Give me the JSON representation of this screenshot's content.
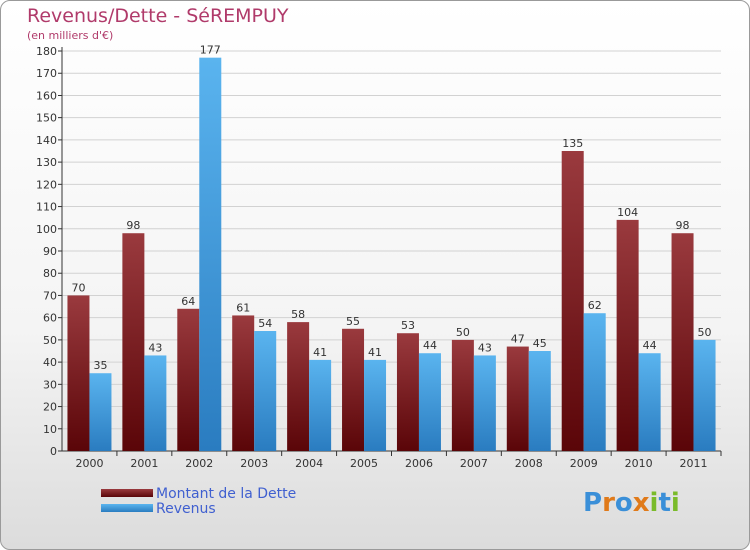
{
  "title": "Revenus/Dette - SéREMPUY",
  "subtitle": "(en milliers d'€)",
  "legend": {
    "debt_label": "Montant de la Dette",
    "revenue_label": "Revenus"
  },
  "brand": "Proxiti",
  "colors": {
    "title": "#b03a6a",
    "debt": "#7a1a1e",
    "revenue": "#3a98dc",
    "legend_text": "#4060d0"
  },
  "chart_data": {
    "type": "bar",
    "title": "Revenus/Dette - SéREMPUY",
    "ylabel": "(en milliers d'€)",
    "xlabel": "",
    "categories": [
      "2000",
      "2001",
      "2002",
      "2003",
      "2004",
      "2005",
      "2006",
      "2007",
      "2008",
      "2009",
      "2010",
      "2011"
    ],
    "series": [
      {
        "name": "Montant de la Dette",
        "values": [
          70,
          98,
          64,
          61,
          58,
          55,
          53,
          50,
          47,
          135,
          104,
          98
        ]
      },
      {
        "name": "Revenus",
        "values": [
          35,
          43,
          177,
          54,
          41,
          41,
          44,
          43,
          45,
          62,
          44,
          50
        ]
      }
    ],
    "ylim": [
      0,
      180
    ],
    "yticks": [
      0,
      10,
      20,
      30,
      40,
      50,
      60,
      70,
      80,
      90,
      100,
      110,
      120,
      130,
      140,
      150,
      160,
      170,
      180
    ],
    "grid": true
  }
}
